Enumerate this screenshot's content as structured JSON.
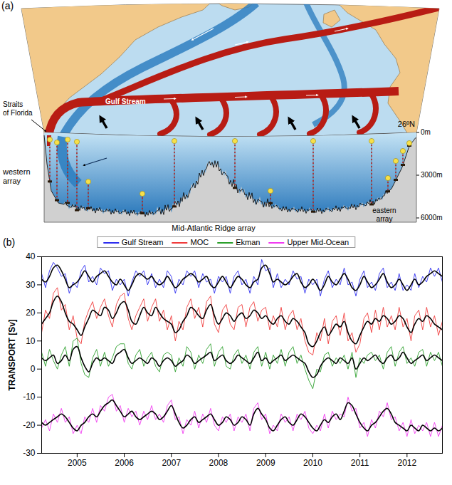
{
  "diagram": {
    "panel": "(a)",
    "latitude": "26ºN",
    "depths": [
      "0m",
      "3000m",
      "6000m"
    ],
    "labels": {
      "gulf_stream": "Gulf Stream",
      "straits": "Straits of Florida",
      "western": "western array",
      "ridge": "Mid-Atlantic Ridge array",
      "eastern": "eastern array"
    }
  },
  "chart_data": {
    "type": "line",
    "panel": "(b)",
    "ylabel": "TRANSPORT [Sv]",
    "legend": "top",
    "x": [
      "2004-04",
      "2004-05",
      "2004-06",
      "2004-07",
      "2004-08",
      "2004-09",
      "2004-10",
      "2004-11",
      "2004-12",
      "2005-01",
      "2005-02",
      "2005-03",
      "2005-04",
      "2005-05",
      "2005-06",
      "2005-07",
      "2005-08",
      "2005-09",
      "2005-10",
      "2005-11",
      "2005-12",
      "2006-01",
      "2006-02",
      "2006-03",
      "2006-04",
      "2006-05",
      "2006-06",
      "2006-07",
      "2006-08",
      "2006-09",
      "2006-10",
      "2006-11",
      "2006-12",
      "2007-01",
      "2007-02",
      "2007-03",
      "2007-04",
      "2007-05",
      "2007-06",
      "2007-07",
      "2007-08",
      "2007-09",
      "2007-10",
      "2007-11",
      "2007-12",
      "2008-01",
      "2008-02",
      "2008-03",
      "2008-04",
      "2008-05",
      "2008-06",
      "2008-07",
      "2008-08",
      "2008-09",
      "2008-10",
      "2008-11",
      "2008-12",
      "2009-01",
      "2009-02",
      "2009-03",
      "2009-04",
      "2009-05",
      "2009-06",
      "2009-07",
      "2009-08",
      "2009-09",
      "2009-10",
      "2009-11",
      "2009-12",
      "2010-01",
      "2010-02",
      "2010-03",
      "2010-04",
      "2010-05",
      "2010-06",
      "2010-07",
      "2010-08",
      "2010-09",
      "2010-10",
      "2010-11",
      "2010-12",
      "2011-01",
      "2011-02",
      "2011-03",
      "2011-04",
      "2011-05",
      "2011-06",
      "2011-07",
      "2011-08",
      "2011-09",
      "2011-10",
      "2011-11",
      "2011-12",
      "2012-01",
      "2012-02",
      "2012-03",
      "2012-04",
      "2012-05",
      "2012-06",
      "2012-07",
      "2012-08",
      "2012-09",
      "2012-10"
    ],
    "xlim": [
      "2004-04",
      "2012-10"
    ],
    "xticks": [
      {
        "value": "2005-01",
        "label": "2005"
      },
      {
        "value": "2006-01",
        "label": "2006"
      },
      {
        "value": "2007-01",
        "label": "2007"
      },
      {
        "value": "2008-01",
        "label": "2008"
      },
      {
        "value": "2009-01",
        "label": "2009"
      },
      {
        "value": "2010-01",
        "label": "2010"
      },
      {
        "value": "2011-01",
        "label": "2011"
      },
      {
        "value": "2012-01",
        "label": "2012"
      }
    ],
    "ylim": [
      -30,
      40
    ],
    "yticks": [
      -30,
      -20,
      -10,
      0,
      10,
      20,
      30,
      40
    ],
    "series": [
      {
        "name": "Gulf Stream",
        "color": "#2f2ff0",
        "values": [
          34,
          29,
          35,
          38,
          36,
          33,
          34,
          27,
          31,
          29,
          35,
          37,
          31,
          33,
          30,
          36,
          34,
          35,
          28,
          32,
          30,
          32,
          26,
          31,
          35,
          33,
          35,
          30,
          34,
          29,
          32,
          29,
          35,
          33,
          27,
          32,
          30,
          35,
          33,
          35,
          29,
          34,
          31,
          32,
          27,
          33,
          31,
          33,
          27,
          33,
          35,
          30,
          32,
          27,
          33,
          30,
          39,
          35,
          36,
          29,
          34,
          29,
          32,
          30,
          35,
          32,
          33,
          27,
          32,
          30,
          32,
          26,
          32,
          35,
          29,
          32,
          30,
          36,
          30,
          31,
          26,
          32,
          35,
          29,
          31,
          28,
          34,
          36,
          29,
          31,
          28,
          34,
          28,
          30,
          28,
          34,
          29,
          33,
          31,
          36,
          33,
          36,
          31
        ],
        "smoothed": [
          32,
          31,
          33,
          36,
          37,
          35,
          32,
          29,
          30,
          31,
          33,
          35,
          33,
          31,
          33,
          34,
          35,
          33,
          31,
          30,
          32,
          30,
          28,
          30,
          33,
          34,
          33,
          32,
          33,
          31,
          30,
          31,
          33,
          31,
          29,
          30,
          32,
          33,
          34,
          33,
          31,
          32,
          33,
          30,
          29,
          31,
          33,
          31,
          29,
          31,
          33,
          32,
          30,
          29,
          31,
          32,
          36,
          37,
          34,
          31,
          32,
          31,
          30,
          31,
          33,
          34,
          31,
          29,
          30,
          32,
          30,
          28,
          30,
          33,
          31,
          30,
          32,
          34,
          32,
          29,
          28,
          30,
          33,
          31,
          29,
          30,
          32,
          34,
          31,
          29,
          30,
          32,
          30,
          28,
          30,
          32,
          30,
          31,
          33,
          34,
          35,
          34,
          33
        ]
      },
      {
        "name": "MOC",
        "color": "#f03c3c",
        "values": [
          13,
          21,
          18,
          27,
          29,
          21,
          23,
          14,
          19,
          11,
          9,
          17,
          21,
          24,
          18,
          22,
          25,
          19,
          15,
          23,
          26,
          27,
          18,
          14,
          19,
          22,
          25,
          17,
          22,
          25,
          17,
          21,
          14,
          19,
          10,
          17,
          14,
          22,
          25,
          18,
          22,
          15,
          24,
          26,
          16,
          13,
          21,
          23,
          16,
          14,
          22,
          23,
          15,
          22,
          24,
          17,
          21,
          22,
          14,
          19,
          15,
          22,
          14,
          19,
          21,
          14,
          18,
          10,
          6,
          5,
          13,
          10,
          18,
          9,
          17,
          19,
          12,
          20,
          10,
          13,
          6,
          9,
          18,
          20,
          13,
          21,
          14,
          22,
          15,
          19,
          14,
          22,
          15,
          18,
          10,
          19,
          21,
          14,
          22,
          15,
          19,
          12,
          17
        ],
        "smoothed": [
          16,
          18,
          20,
          24,
          26,
          24,
          20,
          17,
          16,
          14,
          12,
          15,
          18,
          21,
          20,
          19,
          22,
          21,
          18,
          20,
          23,
          24,
          21,
          17,
          16,
          19,
          22,
          20,
          19,
          22,
          20,
          18,
          17,
          16,
          13,
          14,
          17,
          19,
          22,
          21,
          19,
          18,
          21,
          23,
          19,
          16,
          18,
          20,
          19,
          17,
          19,
          20,
          18,
          19,
          21,
          20,
          18,
          19,
          17,
          16,
          18,
          19,
          17,
          16,
          18,
          17,
          15,
          13,
          9,
          8,
          10,
          13,
          15,
          12,
          14,
          16,
          15,
          17,
          13,
          10,
          9,
          12,
          15,
          17,
          16,
          18,
          17,
          19,
          18,
          16,
          17,
          19,
          18,
          15,
          13,
          16,
          18,
          17,
          19,
          18,
          16,
          15,
          14
        ]
      },
      {
        "name": "Ekman",
        "color": "#2ca02c",
        "values": [
          6,
          1,
          7,
          3,
          0,
          5,
          8,
          1,
          10,
          11,
          2,
          -2,
          -3,
          4,
          7,
          1,
          6,
          1,
          4,
          8,
          9,
          9,
          2,
          0,
          5,
          7,
          1,
          4,
          6,
          1,
          -1,
          5,
          6,
          5,
          -1,
          4,
          1,
          8,
          6,
          0,
          5,
          2,
          7,
          9,
          1,
          6,
          8,
          1,
          0,
          5,
          7,
          2,
          5,
          0,
          6,
          8,
          1,
          6,
          0,
          5,
          2,
          7,
          1,
          6,
          8,
          2,
          5,
          0,
          -4,
          -7,
          0,
          -1,
          5,
          6,
          1,
          4,
          2,
          5,
          0,
          6,
          -3,
          4,
          2,
          5,
          6,
          3,
          5,
          0,
          6,
          8,
          1,
          6,
          8,
          2,
          4,
          1,
          6,
          7,
          1,
          6,
          3,
          6,
          1
        ],
        "smoothed": [
          4,
          3,
          4,
          5,
          2,
          3,
          5,
          3,
          7,
          8,
          4,
          1,
          -1,
          2,
          4,
          3,
          4,
          3,
          2,
          5,
          6,
          7,
          4,
          2,
          3,
          4,
          3,
          2,
          4,
          3,
          1,
          3,
          4,
          3,
          1,
          2,
          3,
          5,
          4,
          2,
          3,
          4,
          5,
          6,
          3,
          4,
          5,
          3,
          2,
          3,
          5,
          4,
          3,
          2,
          4,
          6,
          3,
          4,
          2,
          3,
          4,
          5,
          3,
          4,
          5,
          4,
          3,
          2,
          -1,
          -3,
          -2,
          1,
          3,
          4,
          3,
          2,
          4,
          3,
          2,
          4,
          0,
          2,
          4,
          3,
          4,
          5,
          3,
          2,
          4,
          5,
          3,
          4,
          6,
          4,
          2,
          3,
          4,
          5,
          3,
          4,
          5,
          4,
          3
        ]
      },
      {
        "name": "Upper Mid-Ocean",
        "color": "#f03cf0",
        "values": [
          -21,
          -18,
          -22,
          -16,
          -19,
          -14,
          -19,
          -17,
          -23,
          -20,
          -23,
          -17,
          -19,
          -14,
          -19,
          -13,
          -15,
          -10,
          -9,
          -15,
          -13,
          -19,
          -14,
          -17,
          -15,
          -20,
          -15,
          -18,
          -13,
          -18,
          -16,
          -19,
          -13,
          -11,
          -18,
          -17,
          -23,
          -18,
          -20,
          -15,
          -21,
          -16,
          -19,
          -14,
          -20,
          -22,
          -17,
          -19,
          -16,
          -22,
          -17,
          -19,
          -16,
          -22,
          -14,
          -12,
          -18,
          -16,
          -23,
          -20,
          -22,
          -16,
          -19,
          -17,
          -22,
          -16,
          -18,
          -15,
          -21,
          -23,
          -20,
          -22,
          -16,
          -21,
          -15,
          -18,
          -16,
          -17,
          -10,
          -15,
          -14,
          -21,
          -19,
          -24,
          -18,
          -21,
          -15,
          -17,
          -12,
          -18,
          -17,
          -22,
          -19,
          -24,
          -18,
          -23,
          -20,
          -22,
          -19,
          -24,
          -19,
          -24,
          -20
        ],
        "smoothed": [
          -19,
          -20,
          -19,
          -18,
          -17,
          -16,
          -17,
          -19,
          -21,
          -22,
          -20,
          -19,
          -17,
          -16,
          -17,
          -15,
          -13,
          -12,
          -11,
          -13,
          -15,
          -17,
          -16,
          -15,
          -17,
          -18,
          -17,
          -16,
          -15,
          -16,
          -18,
          -17,
          -15,
          -13,
          -16,
          -19,
          -21,
          -20,
          -18,
          -17,
          -19,
          -18,
          -17,
          -16,
          -18,
          -20,
          -19,
          -17,
          -18,
          -20,
          -19,
          -17,
          -18,
          -20,
          -16,
          -14,
          -16,
          -18,
          -21,
          -22,
          -20,
          -18,
          -17,
          -19,
          -20,
          -18,
          -16,
          -17,
          -19,
          -21,
          -22,
          -20,
          -18,
          -19,
          -17,
          -16,
          -18,
          -15,
          -12,
          -13,
          -16,
          -19,
          -21,
          -22,
          -20,
          -19,
          -17,
          -15,
          -14,
          -16,
          -19,
          -20,
          -21,
          -22,
          -20,
          -21,
          -22,
          -20,
          -21,
          -22,
          -21,
          -22,
          -21
        ]
      }
    ]
  }
}
